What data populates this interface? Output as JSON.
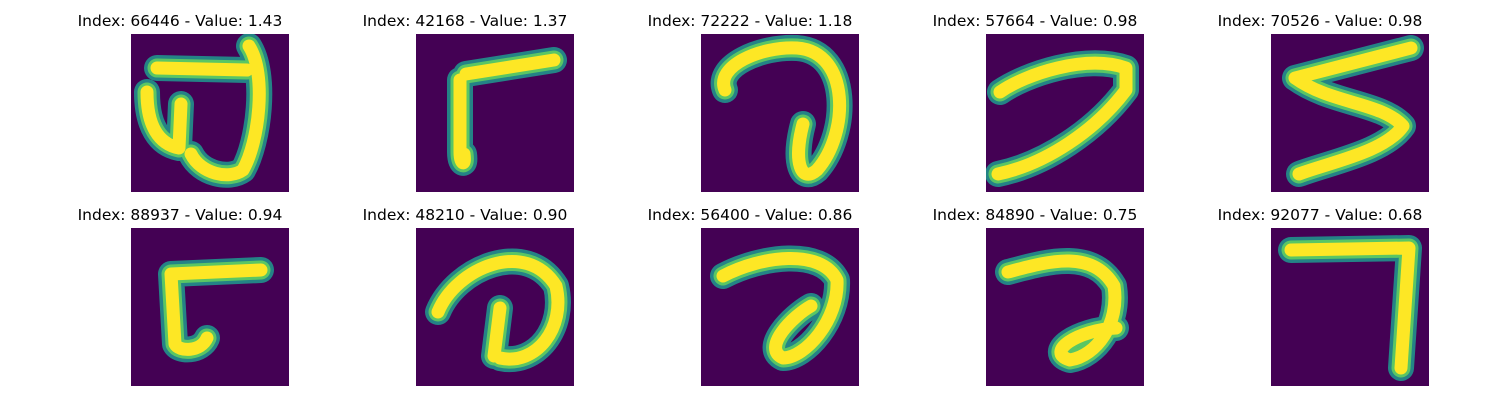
{
  "colors": {
    "background": "#440154",
    "halo": "#21918c",
    "halo2": "#5ec962",
    "stroke": "#fde725"
  },
  "panels": [
    {
      "title": "Index: 66446 - Value: 1.43"
    },
    {
      "title": "Index: 42168 - Value: 1.37"
    },
    {
      "title": "Index: 72222 - Value: 1.18"
    },
    {
      "title": "Index: 57664 - Value: 0.98"
    },
    {
      "title": "Index: 70526 - Value: 0.98"
    },
    {
      "title": "Index: 88937 - Value: 0.94"
    },
    {
      "title": "Index: 48210 - Value: 0.90"
    },
    {
      "title": "Index: 56400 - Value: 0.86"
    },
    {
      "title": "Index: 84890 - Value: 0.75"
    },
    {
      "title": "Index: 92077 - Value: 0.68"
    }
  ]
}
